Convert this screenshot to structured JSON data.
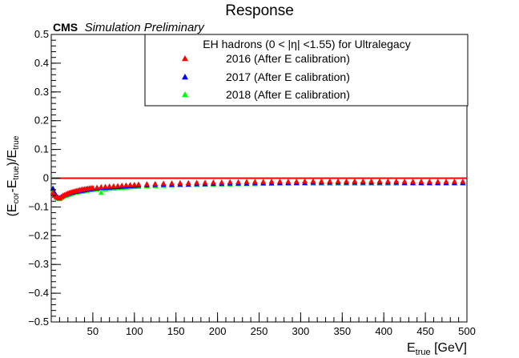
{
  "chart_data": {
    "type": "scatter",
    "title": "Response",
    "experiment_label": "CMS",
    "experiment_extra": "Simulation Preliminary",
    "xlabel": {
      "main": "E",
      "sub": "true",
      "unit": " [GeV]"
    },
    "ylabel": {
      "p1": "(E",
      "s1": "cor",
      "p2": "-E",
      "s2": "true",
      "p3": ")/E",
      "s3": "true"
    },
    "xlim": [
      0,
      500
    ],
    "ylim": [
      -0.5,
      0.5
    ],
    "xticks": [
      50,
      100,
      150,
      200,
      250,
      300,
      350,
      400,
      450,
      500
    ],
    "yticks": [
      -0.5,
      -0.4,
      -0.3,
      -0.2,
      -0.1,
      0,
      0.1,
      0.2,
      0.3,
      0.4,
      0.5
    ],
    "grid": false,
    "reference_line": {
      "y": 0,
      "color": "#ff0000"
    },
    "legend": {
      "header": "EH hadrons (0 < |η| <1.55) for Ultralegacy",
      "placement": "top-right"
    },
    "series": [
      {
        "name": "2016 (After E calibration)",
        "color": "#ff0000",
        "points": [
          [
            2,
            -0.05
          ],
          [
            4,
            -0.06
          ],
          [
            6,
            -0.065
          ],
          [
            8,
            -0.068
          ],
          [
            10,
            -0.07
          ],
          [
            12,
            -0.065
          ],
          [
            14,
            -0.06
          ],
          [
            16,
            -0.058
          ],
          [
            18,
            -0.055
          ],
          [
            20,
            -0.052
          ],
          [
            22,
            -0.05
          ],
          [
            24,
            -0.048
          ],
          [
            26,
            -0.046
          ],
          [
            28,
            -0.045
          ],
          [
            30,
            -0.043
          ],
          [
            32,
            -0.042
          ],
          [
            34,
            -0.04
          ],
          [
            36,
            -0.039
          ],
          [
            38,
            -0.038
          ],
          [
            40,
            -0.037
          ],
          [
            42,
            -0.036
          ],
          [
            44,
            -0.035
          ],
          [
            46,
            -0.034
          ],
          [
            48,
            -0.033
          ],
          [
            50,
            -0.033
          ],
          [
            55,
            -0.032
          ],
          [
            60,
            -0.03
          ],
          [
            65,
            -0.029
          ],
          [
            70,
            -0.028
          ],
          [
            75,
            -0.027
          ],
          [
            80,
            -0.026
          ],
          [
            85,
            -0.025
          ],
          [
            90,
            -0.024
          ],
          [
            95,
            -0.023
          ],
          [
            100,
            -0.022
          ],
          [
            105,
            -0.021
          ],
          [
            115,
            -0.02
          ],
          [
            125,
            -0.019
          ],
          [
            135,
            -0.018
          ],
          [
            145,
            -0.017
          ],
          [
            155,
            -0.016
          ],
          [
            165,
            -0.016
          ],
          [
            175,
            -0.015
          ],
          [
            185,
            -0.015
          ],
          [
            195,
            -0.014
          ],
          [
            205,
            -0.014
          ],
          [
            215,
            -0.013
          ],
          [
            225,
            -0.013
          ],
          [
            235,
            -0.012
          ],
          [
            245,
            -0.012
          ],
          [
            255,
            -0.012
          ],
          [
            265,
            -0.011
          ],
          [
            275,
            -0.011
          ],
          [
            285,
            -0.011
          ],
          [
            295,
            -0.011
          ],
          [
            305,
            -0.01
          ],
          [
            315,
            -0.01
          ],
          [
            325,
            -0.01
          ],
          [
            335,
            -0.01
          ],
          [
            345,
            -0.01
          ],
          [
            355,
            -0.01
          ],
          [
            365,
            -0.01
          ],
          [
            375,
            -0.01
          ],
          [
            385,
            -0.01
          ],
          [
            395,
            -0.01
          ],
          [
            405,
            -0.01
          ],
          [
            415,
            -0.01
          ],
          [
            425,
            -0.011
          ],
          [
            435,
            -0.011
          ],
          [
            445,
            -0.011
          ],
          [
            455,
            -0.011
          ],
          [
            465,
            -0.011
          ],
          [
            475,
            -0.011
          ],
          [
            485,
            -0.011
          ],
          [
            495,
            -0.011
          ]
        ]
      },
      {
        "name": "2017 (After E calibration)",
        "color": "#0000ff",
        "points": [
          [
            2,
            -0.035
          ],
          [
            4,
            -0.05
          ],
          [
            6,
            -0.06
          ],
          [
            8,
            -0.066
          ],
          [
            10,
            -0.068
          ],
          [
            12,
            -0.064
          ],
          [
            14,
            -0.061
          ],
          [
            16,
            -0.058
          ],
          [
            18,
            -0.056
          ],
          [
            20,
            -0.054
          ],
          [
            22,
            -0.052
          ],
          [
            24,
            -0.05
          ],
          [
            26,
            -0.049
          ],
          [
            28,
            -0.047
          ],
          [
            30,
            -0.046
          ],
          [
            32,
            -0.045
          ],
          [
            34,
            -0.044
          ],
          [
            36,
            -0.043
          ],
          [
            38,
            -0.042
          ],
          [
            40,
            -0.041
          ],
          [
            42,
            -0.04
          ],
          [
            44,
            -0.039
          ],
          [
            46,
            -0.038
          ],
          [
            48,
            -0.037
          ],
          [
            50,
            -0.036
          ],
          [
            55,
            -0.035
          ],
          [
            60,
            -0.034
          ],
          [
            65,
            -0.033
          ],
          [
            70,
            -0.032
          ],
          [
            75,
            -0.031
          ],
          [
            80,
            -0.03
          ],
          [
            85,
            -0.029
          ],
          [
            90,
            -0.028
          ],
          [
            95,
            -0.027
          ],
          [
            100,
            -0.026
          ],
          [
            105,
            -0.025
          ],
          [
            115,
            -0.024
          ],
          [
            125,
            -0.023
          ],
          [
            135,
            -0.022
          ],
          [
            145,
            -0.022
          ],
          [
            155,
            -0.021
          ],
          [
            165,
            -0.021
          ],
          [
            175,
            -0.02
          ],
          [
            185,
            -0.02
          ],
          [
            195,
            -0.019
          ],
          [
            205,
            -0.019
          ],
          [
            215,
            -0.018
          ],
          [
            225,
            -0.018
          ],
          [
            235,
            -0.018
          ],
          [
            245,
            -0.017
          ],
          [
            255,
            -0.017
          ],
          [
            265,
            -0.017
          ],
          [
            275,
            -0.016
          ],
          [
            285,
            -0.016
          ],
          [
            295,
            -0.016
          ],
          [
            305,
            -0.016
          ],
          [
            315,
            -0.015
          ],
          [
            325,
            -0.015
          ],
          [
            335,
            -0.015
          ],
          [
            345,
            -0.015
          ],
          [
            355,
            -0.015
          ],
          [
            365,
            -0.015
          ],
          [
            375,
            -0.015
          ],
          [
            385,
            -0.015
          ],
          [
            395,
            -0.015
          ],
          [
            405,
            -0.015
          ],
          [
            415,
            -0.015
          ],
          [
            425,
            -0.016
          ],
          [
            435,
            -0.016
          ],
          [
            445,
            -0.016
          ],
          [
            455,
            -0.016
          ],
          [
            465,
            -0.016
          ],
          [
            475,
            -0.016
          ],
          [
            485,
            -0.016
          ],
          [
            495,
            -0.016
          ]
        ]
      },
      {
        "name": "2018 (After E calibration)",
        "color": "#00ff00",
        "points": [
          [
            2,
            -0.045
          ],
          [
            4,
            -0.058
          ],
          [
            6,
            -0.066
          ],
          [
            8,
            -0.07
          ],
          [
            10,
            -0.072
          ],
          [
            12,
            -0.068
          ],
          [
            14,
            -0.065
          ],
          [
            16,
            -0.062
          ],
          [
            18,
            -0.06
          ],
          [
            20,
            -0.058
          ],
          [
            22,
            -0.056
          ],
          [
            24,
            -0.054
          ],
          [
            26,
            -0.052
          ],
          [
            28,
            -0.05
          ],
          [
            30,
            -0.049
          ],
          [
            32,
            -0.048
          ],
          [
            34,
            -0.047
          ],
          [
            36,
            -0.046
          ],
          [
            38,
            -0.045
          ],
          [
            40,
            -0.044
          ],
          [
            42,
            -0.043
          ],
          [
            44,
            -0.042
          ],
          [
            46,
            -0.041
          ],
          [
            48,
            -0.04
          ],
          [
            50,
            -0.04
          ],
          [
            55,
            -0.039
          ],
          [
            60,
            -0.05
          ],
          [
            65,
            -0.038
          ],
          [
            70,
            -0.036
          ],
          [
            75,
            -0.035
          ],
          [
            80,
            -0.034
          ],
          [
            85,
            -0.033
          ],
          [
            90,
            -0.032
          ],
          [
            95,
            -0.031
          ],
          [
            100,
            -0.03
          ],
          [
            105,
            -0.029
          ],
          [
            115,
            -0.028
          ],
          [
            125,
            -0.027
          ],
          [
            135,
            -0.026
          ],
          [
            145,
            -0.025
          ],
          [
            155,
            -0.024
          ],
          [
            165,
            -0.023
          ],
          [
            175,
            -0.023
          ],
          [
            185,
            -0.022
          ],
          [
            195,
            -0.022
          ],
          [
            205,
            -0.021
          ],
          [
            215,
            -0.021
          ],
          [
            225,
            -0.02
          ],
          [
            235,
            -0.02
          ],
          [
            245,
            -0.02
          ],
          [
            255,
            -0.019
          ],
          [
            265,
            -0.019
          ],
          [
            275,
            -0.019
          ],
          [
            285,
            -0.019
          ],
          [
            295,
            -0.018
          ],
          [
            305,
            -0.018
          ],
          [
            315,
            -0.018
          ],
          [
            325,
            -0.018
          ],
          [
            335,
            -0.018
          ],
          [
            345,
            -0.018
          ],
          [
            355,
            -0.018
          ],
          [
            365,
            -0.018
          ],
          [
            375,
            -0.018
          ],
          [
            385,
            -0.018
          ],
          [
            395,
            -0.018
          ],
          [
            405,
            -0.018
          ],
          [
            415,
            -0.018
          ],
          [
            425,
            -0.018
          ],
          [
            435,
            -0.018
          ],
          [
            445,
            -0.018
          ],
          [
            455,
            -0.018
          ],
          [
            465,
            -0.018
          ],
          [
            475,
            -0.018
          ],
          [
            485,
            -0.018
          ],
          [
            495,
            -0.018
          ]
        ]
      }
    ]
  }
}
